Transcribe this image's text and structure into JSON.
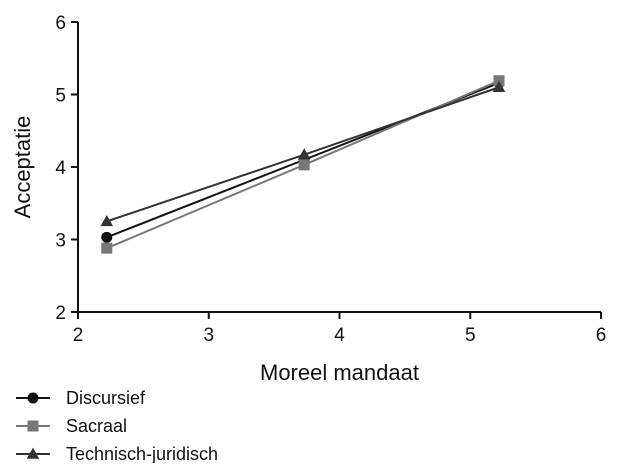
{
  "chart_data": {
    "type": "line",
    "title": "",
    "xlabel": "Moreel mandaat",
    "ylabel": "Acceptatie",
    "xlim": [
      2,
      6
    ],
    "ylim": [
      2,
      6
    ],
    "xticks": [
      "2",
      "3",
      "4",
      "5",
      "6"
    ],
    "yticks": [
      "2",
      "3",
      "4",
      "5",
      "6"
    ],
    "grid": false,
    "legend_position": "bottom-left",
    "x": [
      2.22,
      3.73,
      5.22
    ],
    "series": [
      {
        "name": "Discursief",
        "marker": "circle",
        "color": "#111111",
        "values": [
          3.03,
          4.1,
          5.16
        ]
      },
      {
        "name": "Sacraal",
        "marker": "square",
        "color": "#777777",
        "values": [
          2.88,
          4.03,
          5.19
        ]
      },
      {
        "name": "Technisch-juridisch",
        "marker": "triangle",
        "color": "#333333",
        "values": [
          3.25,
          4.17,
          5.1
        ]
      }
    ]
  }
}
